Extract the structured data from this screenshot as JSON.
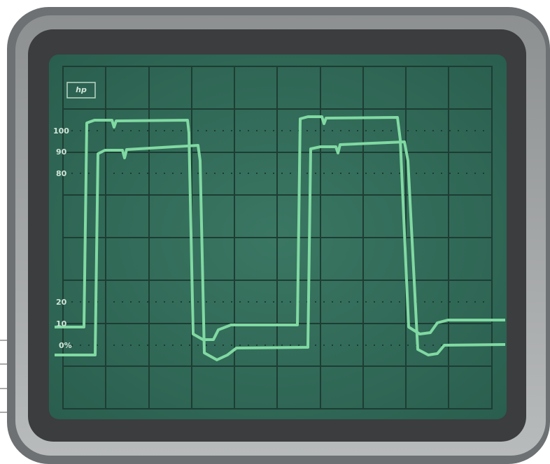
{
  "screen": {
    "logo": "hp",
    "scale_labels": [
      "100",
      "90",
      "80",
      "20",
      "10",
      "0%"
    ]
  }
}
